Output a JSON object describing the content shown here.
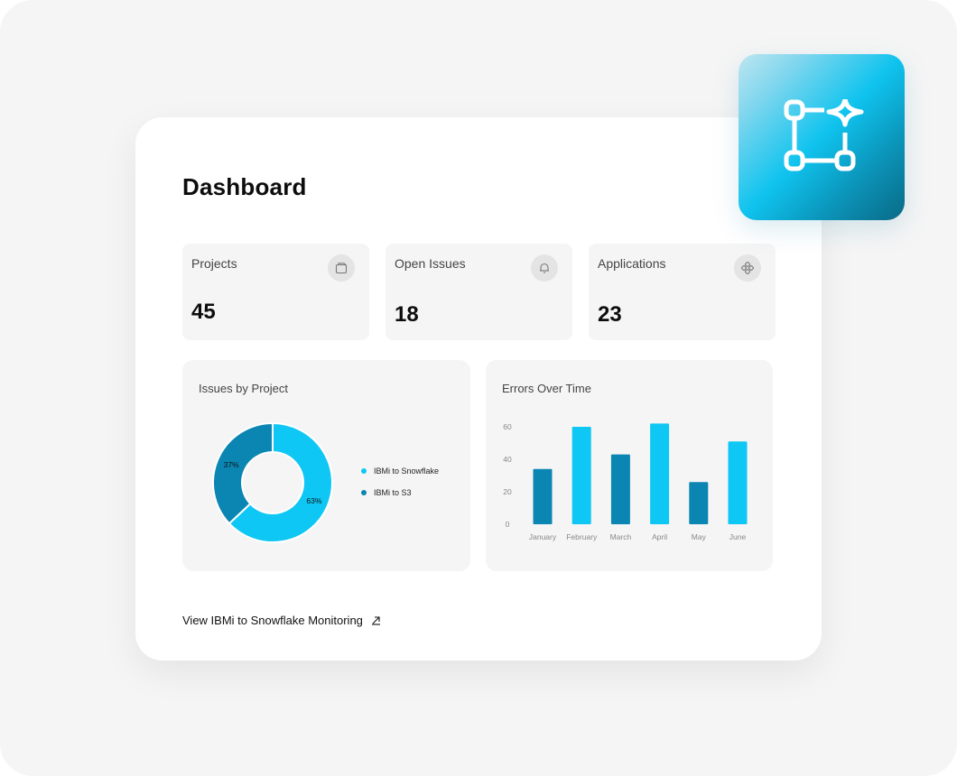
{
  "dashboard": {
    "title": "Dashboard",
    "stats": [
      {
        "label": "Projects",
        "value": "45",
        "icon": "folder-icon"
      },
      {
        "label": "Open Issues",
        "value": "18",
        "icon": "bell-icon"
      },
      {
        "label": "Applications",
        "value": "23",
        "icon": "apps-icon"
      }
    ]
  },
  "colors": {
    "primary": "#0fc7f4",
    "secondary": "#0b86b3"
  },
  "chart_data": [
    {
      "type": "pie",
      "title": "Issues by Project",
      "donut": true,
      "series": [
        {
          "name": "IBMi to Snowflake",
          "value": 63,
          "label": "63%",
          "color": "#0fc7f4"
        },
        {
          "name": "IBMi to S3",
          "value": 37,
          "label": "37%",
          "color": "#0b86b3"
        }
      ],
      "legend_placement": "right"
    },
    {
      "type": "bar",
      "title": "Errors Over Time",
      "categories": [
        "January",
        "February",
        "March",
        "April",
        "May",
        "June"
      ],
      "values": [
        34,
        60,
        43,
        62,
        26,
        51
      ],
      "colors": [
        "#0b86b3",
        "#0fc7f4",
        "#0b86b3",
        "#0fc7f4",
        "#0b86b3",
        "#0fc7f4"
      ],
      "yticks": [
        "0",
        "20",
        "40",
        "60"
      ],
      "ylim": [
        0,
        60
      ],
      "grid": false
    }
  ],
  "footer": {
    "link_label": "View IBMi to Snowflake Monitoring"
  }
}
